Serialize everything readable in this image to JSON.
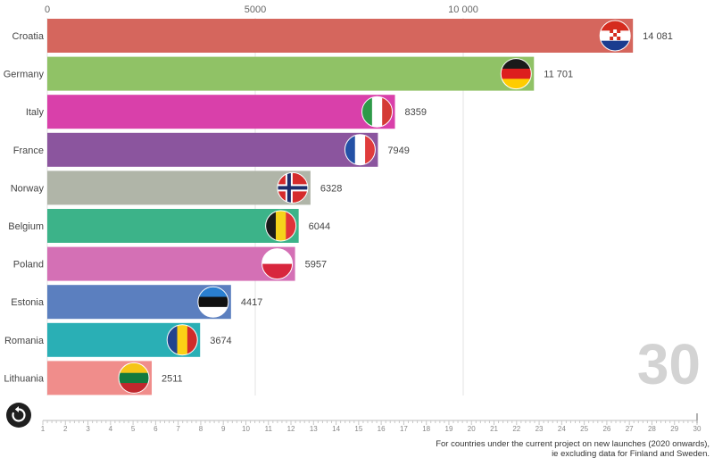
{
  "chart_data": {
    "type": "bar",
    "orientation": "horizontal",
    "categories": [
      "Croatia",
      "Germany",
      "Italy",
      "France",
      "Norway",
      "Belgium",
      "Poland",
      "Estonia",
      "Romania",
      "Lithuania"
    ],
    "values": [
      14081,
      11701,
      8359,
      7949,
      6328,
      6044,
      5957,
      4417,
      3674,
      2511
    ],
    "value_labels": [
      "14 081",
      "11 701",
      "8359",
      "7949",
      "6328",
      "6044",
      "5957",
      "4417",
      "3674",
      "2511"
    ],
    "colors": [
      "#d5665d",
      "#90c266",
      "#d940aa",
      "#8b559e",
      "#b0b5a8",
      "#3cb389",
      "#d470b5",
      "#5b7fbf",
      "#2aafb5",
      "#f08d8b"
    ],
    "flag_icons": [
      "croatia-flag",
      "germany-flag",
      "italy-flag",
      "france-flag",
      "norway-flag",
      "belgium-flag",
      "poland-flag",
      "estonia-flag",
      "romania-flag",
      "lithuania-flag"
    ],
    "xlim": [
      0,
      14081
    ],
    "x_ticks": [
      {
        "value": 0,
        "label": "0"
      },
      {
        "value": 5000,
        "label": "5000"
      },
      {
        "value": 10000,
        "label": "10 000"
      }
    ],
    "grid": true,
    "frame_label": "30",
    "timeline": {
      "min": 1,
      "max": 30,
      "current": 30,
      "tick_labels": [
        "1",
        "2",
        "3",
        "4",
        "5",
        "6",
        "7",
        "8",
        "9",
        "10",
        "11",
        "12",
        "13",
        "14",
        "15",
        "16",
        "17",
        "18",
        "19",
        "20",
        "21",
        "22",
        "23",
        "24",
        "25",
        "26",
        "27",
        "28",
        "29",
        "30"
      ]
    }
  },
  "footnote": {
    "line1": "For countries under the current project on new launches (2020 onwards),",
    "line2": "ie excluding data for Finland and Sweden."
  },
  "controls": {
    "replay_icon": "replay-icon"
  }
}
